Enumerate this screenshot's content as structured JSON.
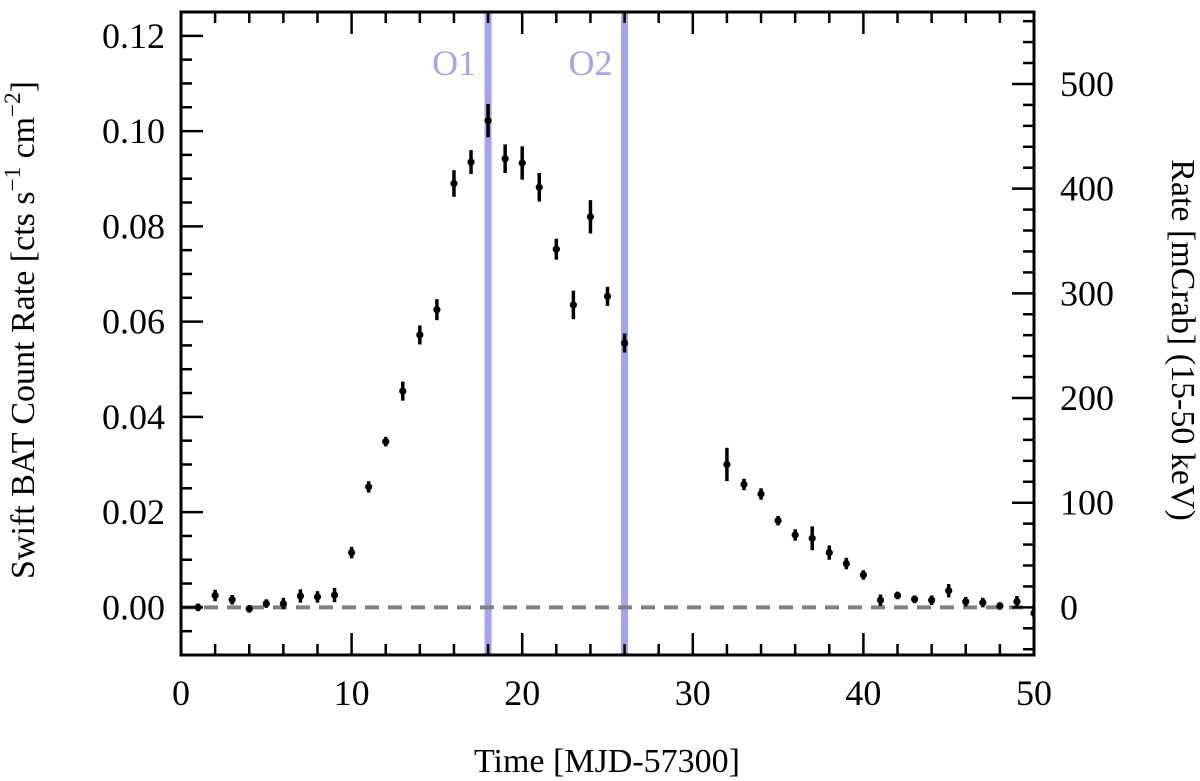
{
  "chart_data": {
    "type": "scatter",
    "title": "",
    "xlabel": "Time [MJD-57300]",
    "ylabel_left": {
      "text": "Swift BAT Count Rate [cts s",
      "sup1": "−1",
      "mid": " cm",
      "sup2": "−2",
      "end": "]"
    },
    "ylabel_right": "Rate [mCrab] (15-50 keV)",
    "xlim": [
      0,
      50
    ],
    "ylim": [
      -0.01,
      0.125
    ],
    "ylim_right": [
      -45.5,
      568.75
    ],
    "x_ticks": [
      0,
      10,
      20,
      30,
      40,
      50
    ],
    "x_tick_labels": [
      "0",
      "10",
      "20",
      "30",
      "40",
      "50"
    ],
    "y_ticks": [
      0.0,
      0.02,
      0.04,
      0.06,
      0.08,
      0.1,
      0.12
    ],
    "y_tick_labels": [
      "0.00",
      "0.02",
      "0.04",
      "0.06",
      "0.08",
      "0.10",
      "0.12"
    ],
    "y_right_ticks": [
      0,
      100,
      200,
      300,
      400,
      500
    ],
    "y_right_tick_labels": [
      "0",
      "100",
      "200",
      "300",
      "400",
      "500"
    ],
    "grid": false,
    "reference_line": {
      "y": 0,
      "style": "dashed",
      "color": "#808080"
    },
    "vertical_markers": [
      {
        "x": 18,
        "label": "O1",
        "color": "#a3a3f0"
      },
      {
        "x": 26,
        "label": "O2",
        "color": "#a3a3f0"
      }
    ],
    "series": [
      {
        "color": "#000000",
        "points": [
          {
            "x": 1,
            "y": 0.0,
            "err": 0.0008
          },
          {
            "x": 2,
            "y": 0.0025,
            "err": 0.0012
          },
          {
            "x": 3,
            "y": 0.0016,
            "err": 0.001
          },
          {
            "x": 4,
            "y": -0.0003,
            "err": 0.0008
          },
          {
            "x": 5,
            "y": 0.0008,
            "err": 0.0009
          },
          {
            "x": 6,
            "y": 0.0008,
            "err": 0.0012
          },
          {
            "x": 7,
            "y": 0.0024,
            "err": 0.0014
          },
          {
            "x": 8,
            "y": 0.0022,
            "err": 0.0012
          },
          {
            "x": 9,
            "y": 0.0026,
            "err": 0.0015
          },
          {
            "x": 10,
            "y": 0.0115,
            "err": 0.0012
          },
          {
            "x": 11,
            "y": 0.0253,
            "err": 0.0012
          },
          {
            "x": 12,
            "y": 0.0348,
            "err": 0.001
          },
          {
            "x": 13,
            "y": 0.0454,
            "err": 0.002
          },
          {
            "x": 14,
            "y": 0.0572,
            "err": 0.002
          },
          {
            "x": 15,
            "y": 0.0625,
            "err": 0.0022
          },
          {
            "x": 16,
            "y": 0.089,
            "err": 0.0028
          },
          {
            "x": 17,
            "y": 0.0935,
            "err": 0.0025
          },
          {
            "x": 18,
            "y": 0.1022,
            "err": 0.0035
          },
          {
            "x": 19,
            "y": 0.0942,
            "err": 0.003
          },
          {
            "x": 20,
            "y": 0.0933,
            "err": 0.0035
          },
          {
            "x": 21,
            "y": 0.0882,
            "err": 0.003
          },
          {
            "x": 22,
            "y": 0.0752,
            "err": 0.0022
          },
          {
            "x": 23,
            "y": 0.0635,
            "err": 0.003
          },
          {
            "x": 24,
            "y": 0.082,
            "err": 0.0035
          },
          {
            "x": 25,
            "y": 0.0653,
            "err": 0.002
          },
          {
            "x": 26,
            "y": 0.0555,
            "err": 0.002
          },
          {
            "x": 32,
            "y": 0.03,
            "err": 0.0035
          },
          {
            "x": 33,
            "y": 0.0258,
            "err": 0.0012
          },
          {
            "x": 34,
            "y": 0.0238,
            "err": 0.0012
          },
          {
            "x": 35,
            "y": 0.0182,
            "err": 0.001
          },
          {
            "x": 36,
            "y": 0.0152,
            "err": 0.0012
          },
          {
            "x": 37,
            "y": 0.0145,
            "err": 0.0025
          },
          {
            "x": 38,
            "y": 0.0115,
            "err": 0.0015
          },
          {
            "x": 39,
            "y": 0.0092,
            "err": 0.0012
          },
          {
            "x": 40,
            "y": 0.0068,
            "err": 0.001
          },
          {
            "x": 41,
            "y": 0.0015,
            "err": 0.0012
          },
          {
            "x": 42,
            "y": 0.0025,
            "err": 0.0008
          },
          {
            "x": 43,
            "y": 0.0017,
            "err": 0.0008
          },
          {
            "x": 44,
            "y": 0.0015,
            "err": 0.001
          },
          {
            "x": 45,
            "y": 0.0035,
            "err": 0.0014
          },
          {
            "x": 46,
            "y": 0.0012,
            "err": 0.001
          },
          {
            "x": 47,
            "y": 0.001,
            "err": 0.001
          },
          {
            "x": 48,
            "y": 0.0003,
            "err": 0.0008
          },
          {
            "x": 49,
            "y": 0.0012,
            "err": 0.0012
          },
          {
            "x": 50,
            "y": -0.0012,
            "err": 0.001
          }
        ]
      }
    ]
  }
}
